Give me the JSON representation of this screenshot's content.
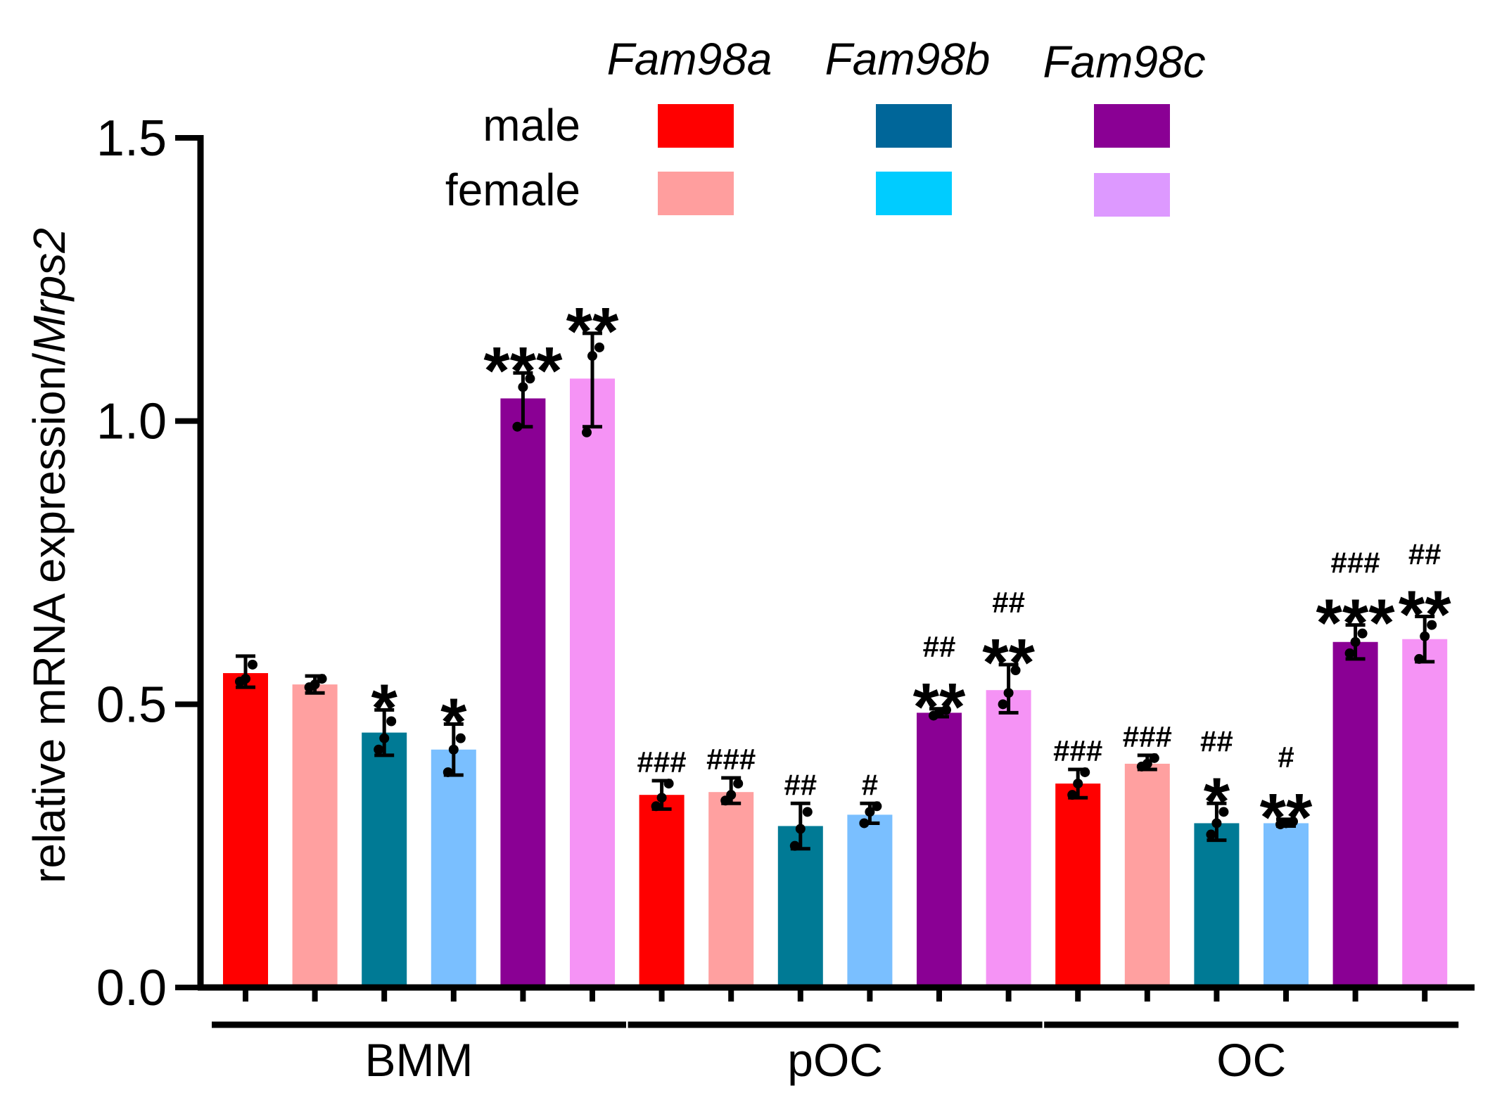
{
  "chart_data": {
    "type": "bar",
    "ylabel_main": "relative mRNA expression/",
    "ylabel_italic": "Mrps2",
    "ylim": [
      0,
      1.5
    ],
    "yticks": [
      "0.0",
      "0.5",
      "1.0",
      "1.5"
    ],
    "ytick_values": [
      0,
      0.5,
      1.0,
      1.5
    ],
    "groups": [
      "BMM",
      "pOC",
      "OC"
    ],
    "legend": {
      "genes": [
        "Fam98a",
        "Fam98b",
        "Fam98c"
      ],
      "sexes": [
        "male",
        "female"
      ],
      "colors": {
        "male": [
          "#ff0000",
          "#006699",
          "#8a0094"
        ],
        "female": [
          "#ff9e9e",
          "#00ccff",
          "#dd99ff"
        ]
      }
    },
    "bars": [
      {
        "group": "BMM",
        "gene": "Fam98a",
        "sex": "male",
        "color": "#ff0000",
        "value": 0.555,
        "err": [
          0.53,
          0.585
        ],
        "points": [
          0.54,
          0.545,
          0.57
        ],
        "stars": "",
        "hashes": ""
      },
      {
        "group": "BMM",
        "gene": "Fam98a",
        "sex": "female",
        "color": "#ffa0a0",
        "value": 0.535,
        "err": [
          0.52,
          0.55
        ],
        "points": [
          0.53,
          0.535,
          0.545
        ],
        "stars": "",
        "hashes": ""
      },
      {
        "group": "BMM",
        "gene": "Fam98b",
        "sex": "male",
        "color": "#007a95",
        "value": 0.45,
        "err": [
          0.41,
          0.49
        ],
        "points": [
          0.42,
          0.44,
          0.47
        ],
        "stars": "*",
        "hashes": ""
      },
      {
        "group": "BMM",
        "gene": "Fam98b",
        "sex": "female",
        "color": "#7abfff",
        "value": 0.42,
        "err": [
          0.375,
          0.465
        ],
        "points": [
          0.38,
          0.42,
          0.44
        ],
        "stars": "*",
        "hashes": ""
      },
      {
        "group": "BMM",
        "gene": "Fam98c",
        "sex": "male",
        "color": "#8a0094",
        "value": 1.04,
        "err": [
          0.99,
          1.085
        ],
        "points": [
          0.99,
          1.06,
          1.075
        ],
        "stars": "***",
        "hashes": ""
      },
      {
        "group": "BMM",
        "gene": "Fam98c",
        "sex": "female",
        "color": "#f593f5",
        "value": 1.075,
        "err": [
          0.99,
          1.155
        ],
        "points": [
          0.98,
          1.115,
          1.13
        ],
        "stars": "**",
        "hashes": ""
      },
      {
        "group": "pOC",
        "gene": "Fam98a",
        "sex": "male",
        "color": "#ff0000",
        "value": 0.34,
        "err": [
          0.315,
          0.365
        ],
        "points": [
          0.32,
          0.335,
          0.36
        ],
        "stars": "",
        "hashes": "###"
      },
      {
        "group": "pOC",
        "gene": "Fam98a",
        "sex": "female",
        "color": "#ffa0a0",
        "value": 0.345,
        "err": [
          0.325,
          0.37
        ],
        "points": [
          0.33,
          0.34,
          0.36
        ],
        "stars": "",
        "hashes": "###"
      },
      {
        "group": "pOC",
        "gene": "Fam98b",
        "sex": "male",
        "color": "#007a95",
        "value": 0.285,
        "err": [
          0.245,
          0.325
        ],
        "points": [
          0.25,
          0.28,
          0.31
        ],
        "stars": "",
        "hashes": "##"
      },
      {
        "group": "pOC",
        "gene": "Fam98b",
        "sex": "female",
        "color": "#7abfff",
        "value": 0.305,
        "err": [
          0.29,
          0.325
        ],
        "points": [
          0.29,
          0.31,
          0.32
        ],
        "stars": "",
        "hashes": "#"
      },
      {
        "group": "pOC",
        "gene": "Fam98c",
        "sex": "male",
        "color": "#8a0094",
        "value": 0.485,
        "err": [
          0.478,
          0.492
        ],
        "points": [
          0.48,
          0.485,
          0.49
        ],
        "stars": "**",
        "hashes": "##"
      },
      {
        "group": "pOC",
        "gene": "Fam98c",
        "sex": "female",
        "color": "#f593f5",
        "value": 0.525,
        "err": [
          0.485,
          0.57
        ],
        "points": [
          0.5,
          0.52,
          0.56
        ],
        "stars": "**",
        "hashes": "##"
      },
      {
        "group": "OC",
        "gene": "Fam98a",
        "sex": "male",
        "color": "#ff0000",
        "value": 0.36,
        "err": [
          0.335,
          0.385
        ],
        "points": [
          0.34,
          0.36,
          0.38
        ],
        "stars": "",
        "hashes": "###"
      },
      {
        "group": "OC",
        "gene": "Fam98a",
        "sex": "female",
        "color": "#ffa0a0",
        "value": 0.395,
        "err": [
          0.385,
          0.41
        ],
        "points": [
          0.39,
          0.395,
          0.405
        ],
        "stars": "",
        "hashes": "###"
      },
      {
        "group": "OC",
        "gene": "Fam98b",
        "sex": "male",
        "color": "#007a95",
        "value": 0.29,
        "err": [
          0.26,
          0.325
        ],
        "points": [
          0.27,
          0.29,
          0.31
        ],
        "stars": "*",
        "hashes": "##"
      },
      {
        "group": "OC",
        "gene": "Fam98b",
        "sex": "female",
        "color": "#7abfff",
        "value": 0.29,
        "err": [
          0.285,
          0.297
        ],
        "points": [
          0.288,
          0.29,
          0.293
        ],
        "stars": "**",
        "hashes": "#"
      },
      {
        "group": "OC",
        "gene": "Fam98c",
        "sex": "male",
        "color": "#8a0094",
        "value": 0.61,
        "err": [
          0.58,
          0.64
        ],
        "points": [
          0.59,
          0.61,
          0.625
        ],
        "stars": "***",
        "hashes": "###"
      },
      {
        "group": "OC",
        "gene": "Fam98c",
        "sex": "female",
        "color": "#f593f5",
        "value": 0.615,
        "err": [
          0.575,
          0.655
        ],
        "points": [
          0.58,
          0.62,
          0.64
        ],
        "stars": "**",
        "hashes": "##"
      }
    ]
  }
}
